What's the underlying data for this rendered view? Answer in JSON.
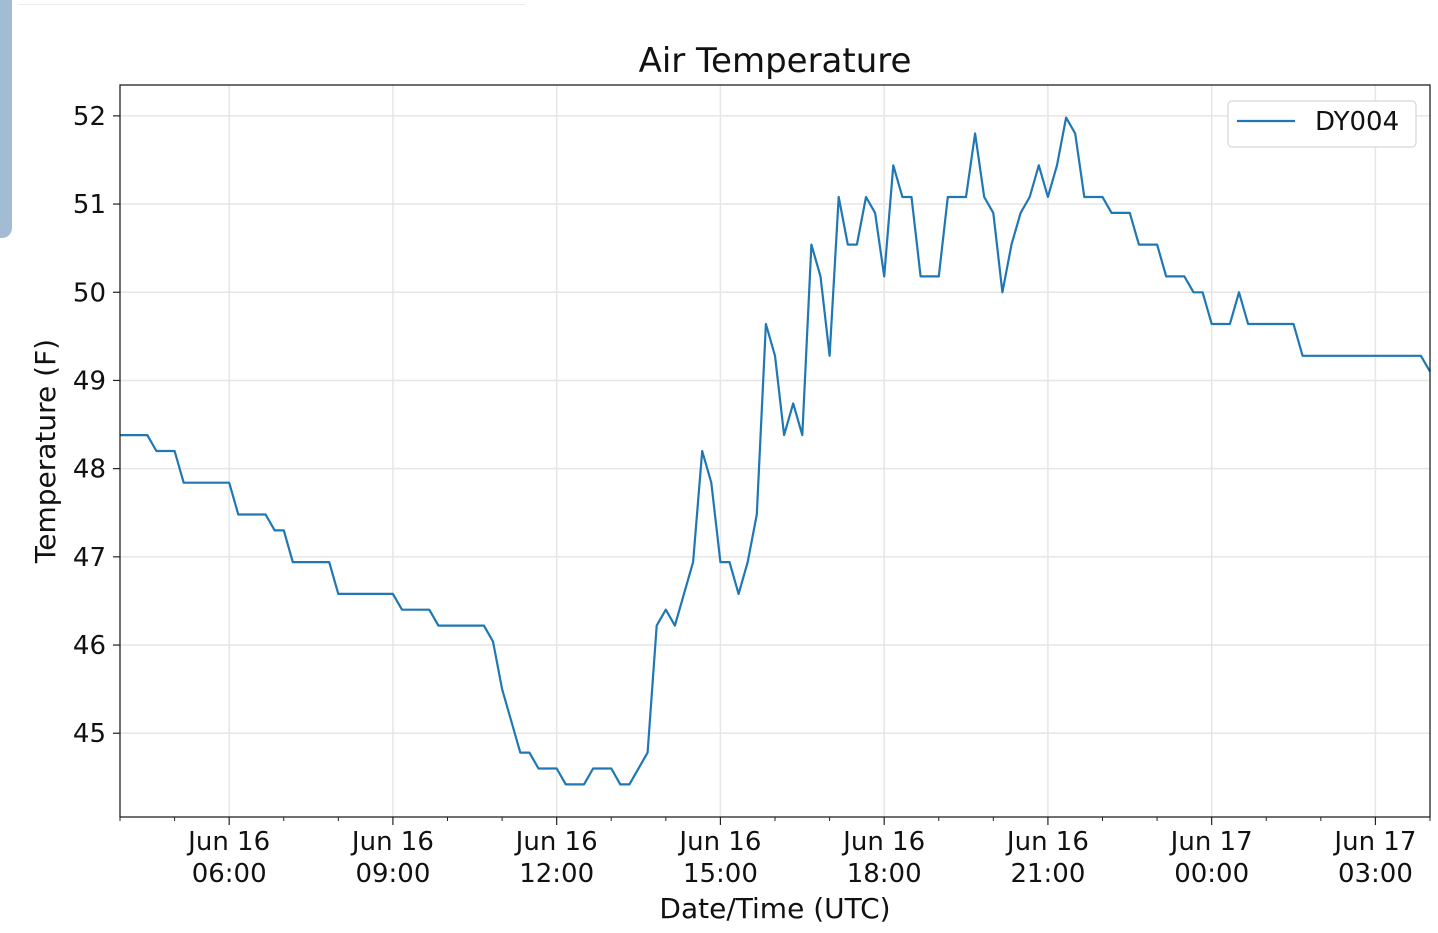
{
  "chart_data": {
    "type": "line",
    "title": "Air Temperature",
    "xlabel": "Date/Time (UTC)",
    "ylabel": "Temperature (F)",
    "x_unit": "minutes since Jun 16 00:00 UTC",
    "xlim": [
      240,
      1680
    ],
    "ylim": [
      44.05,
      52.35
    ],
    "grid": true,
    "legend_position": "top-right",
    "yticks": [
      45,
      46,
      47,
      48,
      49,
      50,
      51,
      52
    ],
    "ytick_labels": [
      "45",
      "46",
      "47",
      "48",
      "49",
      "50",
      "51",
      "52"
    ],
    "xticks": [
      360,
      540,
      720,
      900,
      1080,
      1260,
      1440,
      1620
    ],
    "xtick_labels": [
      [
        "Jun 16",
        "06:00"
      ],
      [
        "Jun 16",
        "09:00"
      ],
      [
        "Jun 16",
        "12:00"
      ],
      [
        "Jun 16",
        "15:00"
      ],
      [
        "Jun 16",
        "18:00"
      ],
      [
        "Jun 16",
        "21:00"
      ],
      [
        "Jun 17",
        "00:00"
      ],
      [
        "Jun 17",
        "03:00"
      ]
    ],
    "minor_xtick_step": 60,
    "series": [
      {
        "name": "DY004",
        "color": "#1f77b4",
        "points": [
          [
            240,
            48.38
          ],
          [
            270,
            48.38
          ],
          [
            280,
            48.2
          ],
          [
            300,
            48.2
          ],
          [
            310,
            47.84
          ],
          [
            360,
            47.84
          ],
          [
            370,
            47.48
          ],
          [
            400,
            47.48
          ],
          [
            410,
            47.3
          ],
          [
            420,
            47.3
          ],
          [
            430,
            46.94
          ],
          [
            470,
            46.94
          ],
          [
            480,
            46.58
          ],
          [
            540,
            46.58
          ],
          [
            550,
            46.4
          ],
          [
            580,
            46.4
          ],
          [
            590,
            46.22
          ],
          [
            640,
            46.22
          ],
          [
            650,
            46.04
          ],
          [
            660,
            45.5
          ],
          [
            680,
            44.78
          ],
          [
            690,
            44.78
          ],
          [
            700,
            44.6
          ],
          [
            720,
            44.6
          ],
          [
            730,
            44.42
          ],
          [
            750,
            44.42
          ],
          [
            760,
            44.6
          ],
          [
            780,
            44.6
          ],
          [
            790,
            44.42
          ],
          [
            800,
            44.42
          ],
          [
            820,
            44.78
          ],
          [
            830,
            46.22
          ],
          [
            840,
            46.4
          ],
          [
            850,
            46.22
          ],
          [
            870,
            46.94
          ],
          [
            880,
            48.2
          ],
          [
            890,
            47.84
          ],
          [
            900,
            46.94
          ],
          [
            910,
            46.94
          ],
          [
            920,
            46.58
          ],
          [
            930,
            46.94
          ],
          [
            940,
            47.48
          ],
          [
            950,
            49.64
          ],
          [
            960,
            49.28
          ],
          [
            970,
            48.38
          ],
          [
            980,
            48.74
          ],
          [
            990,
            48.38
          ],
          [
            1000,
            50.54
          ],
          [
            1010,
            50.18
          ],
          [
            1020,
            49.28
          ],
          [
            1030,
            51.08
          ],
          [
            1040,
            50.54
          ],
          [
            1050,
            50.54
          ],
          [
            1060,
            51.08
          ],
          [
            1070,
            50.9
          ],
          [
            1080,
            50.18
          ],
          [
            1090,
            51.44
          ],
          [
            1100,
            51.08
          ],
          [
            1110,
            51.08
          ],
          [
            1120,
            50.18
          ],
          [
            1140,
            50.18
          ],
          [
            1150,
            51.08
          ],
          [
            1170,
            51.08
          ],
          [
            1180,
            51.8
          ],
          [
            1190,
            51.08
          ],
          [
            1200,
            50.9
          ],
          [
            1210,
            50.0
          ],
          [
            1220,
            50.54
          ],
          [
            1230,
            50.9
          ],
          [
            1240,
            51.08
          ],
          [
            1250,
            51.44
          ],
          [
            1260,
            51.08
          ],
          [
            1270,
            51.44
          ],
          [
            1280,
            51.98
          ],
          [
            1290,
            51.8
          ],
          [
            1300,
            51.08
          ],
          [
            1320,
            51.08
          ],
          [
            1330,
            50.9
          ],
          [
            1350,
            50.9
          ],
          [
            1360,
            50.54
          ],
          [
            1380,
            50.54
          ],
          [
            1390,
            50.18
          ],
          [
            1410,
            50.18
          ],
          [
            1420,
            50.0
          ],
          [
            1430,
            50.0
          ],
          [
            1440,
            49.64
          ],
          [
            1460,
            49.64
          ],
          [
            1470,
            50.0
          ],
          [
            1480,
            49.64
          ],
          [
            1530,
            49.64
          ],
          [
            1540,
            49.28
          ],
          [
            1670,
            49.28
          ],
          [
            1680,
            49.1
          ]
        ]
      }
    ]
  }
}
